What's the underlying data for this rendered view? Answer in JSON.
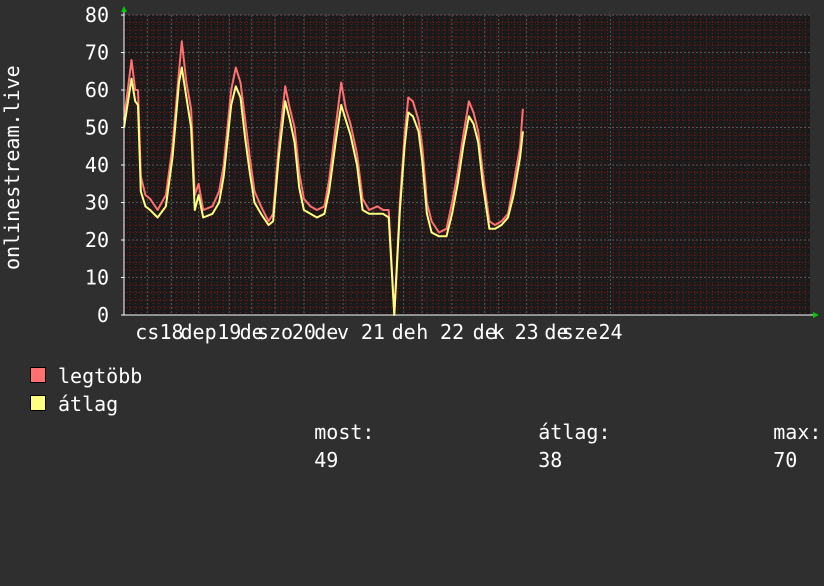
{
  "chart_data": {
    "type": "line",
    "ylabel": "onlinestream.live",
    "ylim": [
      0,
      80
    ],
    "yticks": [
      0,
      10,
      20,
      30,
      40,
      50,
      60,
      70,
      80
    ],
    "xrange": [
      0,
      7.36
    ],
    "xticks": [
      {
        "label": "cs",
        "x": 0.25
      },
      {
        "label": "18",
        "x": 0.51
      },
      {
        "label": "dep",
        "x": 0.8
      },
      {
        "label": "19",
        "x": 1.13
      },
      {
        "label": "de",
        "x": 1.37
      },
      {
        "label": "szo",
        "x": 1.62
      },
      {
        "label": "20",
        "x": 1.93
      },
      {
        "label": "de",
        "x": 2.17
      },
      {
        "label": "v",
        "x": 2.35
      },
      {
        "label": "21",
        "x": 2.67
      },
      {
        "label": "de",
        "x": 3.0
      },
      {
        "label": "h",
        "x": 3.2
      },
      {
        "label": "22",
        "x": 3.52
      },
      {
        "label": "de",
        "x": 3.87
      },
      {
        "label": "k",
        "x": 4.02
      },
      {
        "label": "23",
        "x": 4.32
      },
      {
        "label": "de",
        "x": 4.64
      },
      {
        "label": "sze",
        "x": 4.89
      },
      {
        "label": "24",
        "x": 5.22
      }
    ],
    "grid": true,
    "series": [
      {
        "name": "legtöbb",
        "color": "#ff7070",
        "points": [
          [
            0,
            52
          ],
          [
            0.08,
            68
          ],
          [
            0.12,
            60
          ],
          [
            0.15,
            60
          ],
          [
            0.18,
            37
          ],
          [
            0.23,
            32
          ],
          [
            0.28,
            31
          ],
          [
            0.36,
            28
          ],
          [
            0.45,
            32
          ],
          [
            0.52,
            45
          ],
          [
            0.59,
            65
          ],
          [
            0.62,
            73
          ],
          [
            0.67,
            62
          ],
          [
            0.72,
            55
          ],
          [
            0.76,
            32
          ],
          [
            0.8,
            35
          ],
          [
            0.85,
            28
          ],
          [
            0.95,
            29
          ],
          [
            1.02,
            33
          ],
          [
            1.07,
            40
          ],
          [
            1.15,
            60
          ],
          [
            1.2,
            66
          ],
          [
            1.25,
            62
          ],
          [
            1.3,
            52
          ],
          [
            1.35,
            42
          ],
          [
            1.4,
            33
          ],
          [
            1.47,
            29
          ],
          [
            1.55,
            25
          ],
          [
            1.6,
            27
          ],
          [
            1.66,
            45
          ],
          [
            1.73,
            61
          ],
          [
            1.78,
            55
          ],
          [
            1.83,
            50
          ],
          [
            1.88,
            38
          ],
          [
            1.93,
            31
          ],
          [
            2.0,
            29
          ],
          [
            2.07,
            28
          ],
          [
            2.15,
            29
          ],
          [
            2.2,
            36
          ],
          [
            2.27,
            50
          ],
          [
            2.33,
            62
          ],
          [
            2.38,
            55
          ],
          [
            2.43,
            51
          ],
          [
            2.5,
            43
          ],
          [
            2.56,
            31
          ],
          [
            2.63,
            28
          ],
          [
            2.72,
            29
          ],
          [
            2.78,
            28
          ],
          [
            2.84,
            28
          ],
          [
            2.9,
            0
          ],
          [
            2.96,
            30
          ],
          [
            3.01,
            48
          ],
          [
            3.05,
            58
          ],
          [
            3.1,
            57
          ],
          [
            3.16,
            52
          ],
          [
            3.2,
            45
          ],
          [
            3.25,
            30
          ],
          [
            3.3,
            25
          ],
          [
            3.38,
            22
          ],
          [
            3.46,
            23
          ],
          [
            3.52,
            30
          ],
          [
            3.58,
            38
          ],
          [
            3.64,
            48
          ],
          [
            3.7,
            57
          ],
          [
            3.75,
            54
          ],
          [
            3.8,
            49
          ],
          [
            3.85,
            38
          ],
          [
            3.92,
            25
          ],
          [
            3.98,
            24
          ],
          [
            4.05,
            25
          ],
          [
            4.12,
            27
          ],
          [
            4.18,
            35
          ],
          [
            4.25,
            45
          ],
          [
            4.28,
            55
          ]
        ]
      },
      {
        "name": "átlag",
        "color": "#ffff80",
        "points": [
          [
            0,
            50
          ],
          [
            0.08,
            63
          ],
          [
            0.12,
            57
          ],
          [
            0.15,
            56
          ],
          [
            0.18,
            33
          ],
          [
            0.23,
            29
          ],
          [
            0.28,
            28
          ],
          [
            0.36,
            26
          ],
          [
            0.45,
            29
          ],
          [
            0.52,
            42
          ],
          [
            0.59,
            62
          ],
          [
            0.62,
            66
          ],
          [
            0.67,
            58
          ],
          [
            0.72,
            50
          ],
          [
            0.76,
            28
          ],
          [
            0.8,
            32
          ],
          [
            0.85,
            26
          ],
          [
            0.95,
            27
          ],
          [
            1.02,
            30
          ],
          [
            1.07,
            37
          ],
          [
            1.15,
            56
          ],
          [
            1.2,
            61
          ],
          [
            1.25,
            58
          ],
          [
            1.3,
            47
          ],
          [
            1.35,
            38
          ],
          [
            1.4,
            30
          ],
          [
            1.47,
            27
          ],
          [
            1.55,
            24
          ],
          [
            1.6,
            25
          ],
          [
            1.66,
            42
          ],
          [
            1.73,
            57
          ],
          [
            1.78,
            52
          ],
          [
            1.83,
            46
          ],
          [
            1.88,
            34
          ],
          [
            1.93,
            28
          ],
          [
            2.0,
            27
          ],
          [
            2.07,
            26
          ],
          [
            2.15,
            27
          ],
          [
            2.2,
            33
          ],
          [
            2.27,
            46
          ],
          [
            2.33,
            56
          ],
          [
            2.38,
            52
          ],
          [
            2.43,
            48
          ],
          [
            2.5,
            40
          ],
          [
            2.56,
            28
          ],
          [
            2.63,
            27
          ],
          [
            2.72,
            27
          ],
          [
            2.78,
            27
          ],
          [
            2.84,
            26
          ],
          [
            2.9,
            0
          ],
          [
            2.96,
            28
          ],
          [
            3.01,
            45
          ],
          [
            3.05,
            54
          ],
          [
            3.1,
            53
          ],
          [
            3.16,
            49
          ],
          [
            3.2,
            41
          ],
          [
            3.25,
            27
          ],
          [
            3.3,
            22
          ],
          [
            3.38,
            21
          ],
          [
            3.46,
            21
          ],
          [
            3.52,
            27
          ],
          [
            3.58,
            35
          ],
          [
            3.64,
            45
          ],
          [
            3.7,
            53
          ],
          [
            3.75,
            51
          ],
          [
            3.8,
            46
          ],
          [
            3.85,
            35
          ],
          [
            3.92,
            23
          ],
          [
            3.98,
            23
          ],
          [
            4.05,
            24
          ],
          [
            4.12,
            26
          ],
          [
            4.18,
            32
          ],
          [
            4.25,
            42
          ],
          [
            4.28,
            49
          ]
        ]
      }
    ],
    "legend": {
      "items": [
        {
          "label": "legtöbb",
          "color": "#ff7070"
        },
        {
          "label": "átlag",
          "color": "#ffff80"
        }
      ],
      "stats": {
        "now_label": "most:",
        "now_value": "49",
        "avg_label": "átlag:",
        "avg_value": "38",
        "max_label": "max:",
        "max_value": "70"
      }
    },
    "background": "#2f2f2f",
    "plot_background": "#1a1a1a",
    "grid_minor_color": "#7a1a1a",
    "grid_major_color": "#555555"
  }
}
